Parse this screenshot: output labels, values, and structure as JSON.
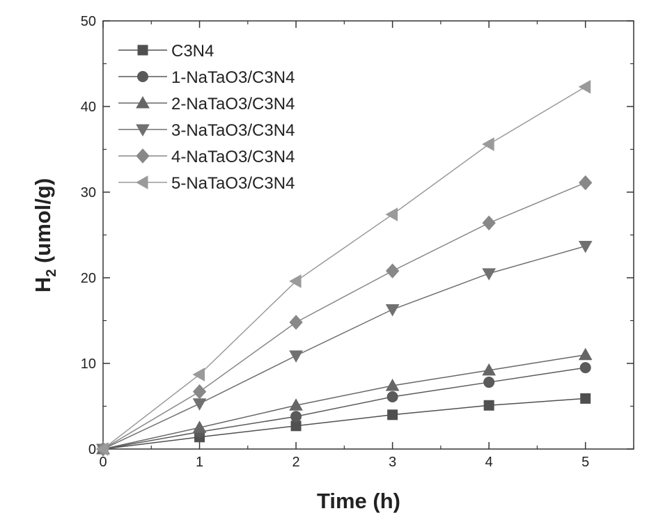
{
  "chart_data": {
    "type": "line",
    "title": "",
    "xlabel": "Time (h)",
    "ylabel_main": "H",
    "ylabel_sub": "2",
    "ylabel_rest": " (umol/g)",
    "xlim": [
      0,
      5.5
    ],
    "ylim": [
      0,
      50
    ],
    "xticks": [
      0,
      1,
      2,
      3,
      4,
      5
    ],
    "yticks": [
      0,
      10,
      20,
      30,
      40,
      50
    ],
    "grid": false,
    "legend_position": "top-left",
    "x": [
      0,
      1,
      2,
      3,
      4,
      5
    ],
    "series": [
      {
        "name": "C3N4",
        "marker": "square",
        "color": "#505050",
        "values": [
          0,
          1.4,
          2.7,
          4.0,
          5.1,
          5.9
        ]
      },
      {
        "name": "1-NaTaO3/C3N4",
        "marker": "circle",
        "color": "#5a5a5a",
        "values": [
          0,
          2.0,
          3.8,
          6.1,
          7.8,
          9.5
        ]
      },
      {
        "name": "2-NaTaO3/C3N4",
        "marker": "triangle-up",
        "color": "#666666",
        "values": [
          0,
          2.5,
          5.1,
          7.4,
          9.2,
          11.0
        ]
      },
      {
        "name": "3-NaTaO3/C3N4",
        "marker": "triangle-down",
        "color": "#707070",
        "values": [
          0,
          5.3,
          10.9,
          16.3,
          20.5,
          23.7
        ]
      },
      {
        "name": "4-NaTaO3/C3N4",
        "marker": "diamond",
        "color": "#888888",
        "values": [
          0,
          6.7,
          14.8,
          20.8,
          26.4,
          31.1
        ]
      },
      {
        "name": "5-NaTaO3/C3N4",
        "marker": "triangle-left",
        "color": "#9a9a9a",
        "values": [
          0,
          8.7,
          19.6,
          27.4,
          35.6,
          42.3
        ]
      }
    ]
  }
}
